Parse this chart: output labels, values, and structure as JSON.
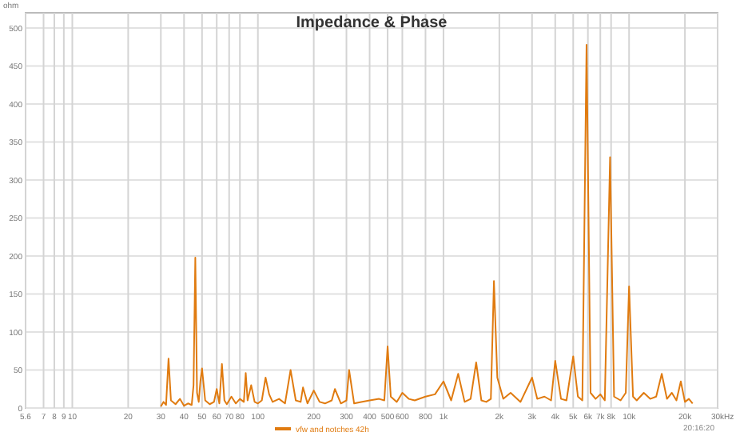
{
  "chart_data": {
    "type": "line",
    "title": "Impedance & Phase",
    "ylabel": "ohm",
    "x": [
      30,
      31,
      32,
      33,
      34,
      36,
      38,
      40,
      42,
      44,
      45,
      46,
      47,
      48,
      49,
      50,
      52,
      55,
      58,
      60,
      62,
      64,
      66,
      68,
      72,
      76,
      80,
      84,
      86,
      88,
      92,
      96,
      100,
      105,
      110,
      115,
      120,
      130,
      140,
      150,
      160,
      170,
      175,
      185,
      200,
      215,
      230,
      250,
      260,
      280,
      300,
      310,
      330,
      360,
      400,
      450,
      480,
      500,
      520,
      560,
      600,
      650,
      700,
      800,
      900,
      1000,
      1100,
      1200,
      1300,
      1400,
      1500,
      1600,
      1700,
      1800,
      1870,
      1950,
      2100,
      2300,
      2600,
      3000,
      3200,
      3500,
      3800,
      4000,
      4300,
      4600,
      5000,
      5300,
      5600,
      5900,
      6200,
      6600,
      7000,
      7400,
      7900,
      8300,
      9000,
      9600,
      10000,
      10500,
      11000,
      12000,
      13000,
      14000,
      15000,
      16000,
      17000,
      18000,
      19000,
      20000,
      21000,
      22000
    ],
    "series": [
      {
        "name": "vfw and notches 42h",
        "color": "#e07b10",
        "values": [
          2,
          8,
          4,
          65,
          10,
          5,
          12,
          3,
          6,
          4,
          30,
          198,
          20,
          8,
          35,
          52,
          10,
          5,
          8,
          25,
          6,
          58,
          10,
          5,
          15,
          6,
          12,
          8,
          46,
          10,
          30,
          8,
          6,
          10,
          40,
          18,
          8,
          12,
          6,
          50,
          10,
          8,
          27,
          6,
          23,
          8,
          6,
          10,
          25,
          6,
          10,
          50,
          6,
          8,
          10,
          12,
          10,
          81,
          15,
          8,
          20,
          12,
          10,
          15,
          18,
          35,
          10,
          45,
          8,
          12,
          60,
          10,
          8,
          12,
          167,
          40,
          12,
          20,
          8,
          40,
          12,
          15,
          10,
          62,
          12,
          10,
          68,
          15,
          10,
          478,
          20,
          12,
          18,
          10,
          330,
          15,
          10,
          20,
          160,
          15,
          10,
          20,
          12,
          15,
          45,
          12,
          20,
          10,
          35,
          8,
          12,
          6
        ]
      }
    ],
    "xlim": [
      5.6,
      30000
    ],
    "log": "x",
    "xticks": [
      {
        "value": 5.6,
        "label": "5.6"
      },
      7,
      8,
      9,
      10,
      20,
      30,
      40,
      50,
      60,
      70,
      80,
      100,
      200,
      300,
      400,
      500,
      600,
      800,
      {
        "value": 1000,
        "label": "1k"
      },
      {
        "value": 2000,
        "label": "2k"
      },
      {
        "value": 3000,
        "label": "3k"
      },
      {
        "value": 4000,
        "label": "4k"
      },
      {
        "value": 5000,
        "label": "5k"
      },
      {
        "value": 6000,
        "label": "6k"
      },
      {
        "value": 7000,
        "label": "7k"
      },
      {
        "value": 8000,
        "label": "8k"
      },
      {
        "value": 10000,
        "label": "10k"
      },
      {
        "value": 20000,
        "label": "20k"
      },
      {
        "value": 30000,
        "label": "30k"
      }
    ],
    "xlabel": "Hz",
    "ylim": [
      0,
      520
    ],
    "yticks": [
      0,
      50,
      100,
      150,
      200,
      250,
      300,
      350,
      400,
      450,
      500
    ],
    "grid": true,
    "legend": "bottom",
    "annotations": [
      "20:16:20"
    ]
  }
}
